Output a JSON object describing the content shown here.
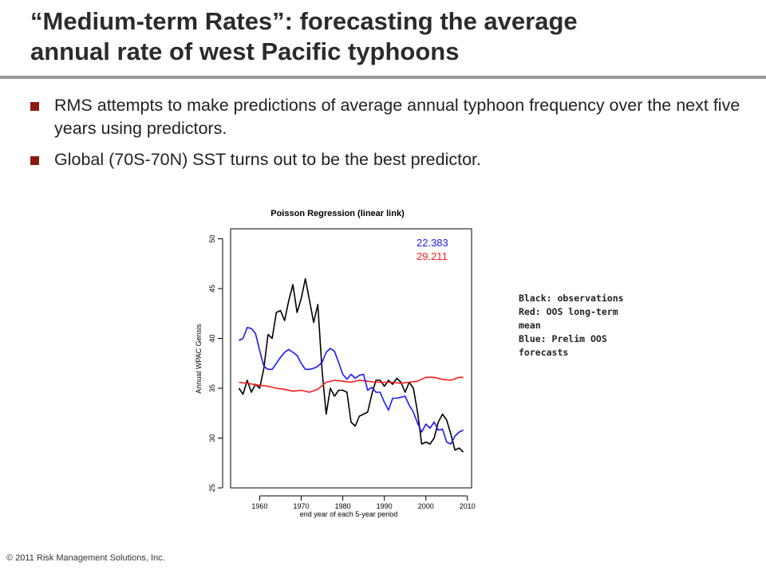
{
  "slide": {
    "title_line1": "“Medium-term Rates”: forecasting the average",
    "title_line2": "annual rate of west Pacific typhoons",
    "bullets": [
      "RMS attempts to make predictions of average annual typhoon frequency over the next five years using predictors.",
      "Global (70S-70N) SST turns out to be the best predictor."
    ],
    "legend_note": [
      "Black: observations",
      "Red: OOS long-term mean",
      "Blue: Prelim OOS forecasts"
    ],
    "footer": "© 2011 Risk Management Solutions, Inc."
  },
  "chart_data": {
    "type": "line",
    "title": "Poisson Regression (linear link)",
    "xlabel": "end year of each 5-year period",
    "ylabel": "Annual WPAC Gensis",
    "xlim": [
      1953,
      2011
    ],
    "ylim": [
      25,
      51
    ],
    "xticks": [
      1960,
      1970,
      1980,
      1990,
      2000,
      2010
    ],
    "yticks": [
      25,
      30,
      35,
      40,
      45,
      50
    ],
    "annotations": [
      {
        "text": "22.383",
        "color": "#1a1aff"
      },
      {
        "text": "29.211",
        "color": "#ff1a1a"
      }
    ],
    "series": [
      {
        "color": "#000000",
        "x": [
          1955,
          1956,
          1957,
          1958,
          1959,
          1960,
          1961,
          1962,
          1963,
          1964,
          1965,
          1966,
          1967,
          1968,
          1969,
          1970,
          1971,
          1972,
          1973,
          1974,
          1975,
          1976,
          1977,
          1978,
          1979,
          1980,
          1981,
          1982,
          1983,
          1984,
          1985,
          1986,
          1987,
          1988,
          1989,
          1990,
          1991,
          1992,
          1993,
          1994,
          1995,
          1996,
          1997,
          1998,
          1999,
          2000,
          2001,
          2002,
          2003,
          2004,
          2005,
          2006,
          2007,
          2008,
          2009
        ],
        "values": [
          35.0,
          34.4,
          35.8,
          34.6,
          35.4,
          35.0,
          37.0,
          40.4,
          40.0,
          42.6,
          42.8,
          41.8,
          43.8,
          45.4,
          42.6,
          44.0,
          46.0,
          43.8,
          41.6,
          43.4,
          36.8,
          32.4,
          35.0,
          34.2,
          34.8,
          34.8,
          34.6,
          31.6,
          31.2,
          32.2,
          32.4,
          32.6,
          34.4,
          35.8,
          35.8,
          35.2,
          35.8,
          35.4,
          36.0,
          35.6,
          34.6,
          35.6,
          35.0,
          32.6,
          29.4,
          29.6,
          29.4,
          30.0,
          31.6,
          32.4,
          31.8,
          30.4,
          28.8,
          29.0,
          28.6
        ]
      },
      {
        "color": "#ff1a1a",
        "x": [
          1955,
          1957,
          1960,
          1962,
          1964,
          1966,
          1968,
          1970,
          1972,
          1974,
          1976,
          1978,
          1980,
          1982,
          1984,
          1986,
          1988,
          1990,
          1992,
          1994,
          1996,
          1998,
          2000,
          2002,
          2004,
          2006,
          2008,
          2009
        ],
        "values": [
          35.6,
          35.5,
          35.3,
          35.2,
          35.0,
          34.9,
          34.7,
          34.8,
          34.6,
          34.9,
          35.6,
          35.8,
          35.7,
          35.6,
          35.8,
          35.7,
          35.6,
          35.6,
          35.6,
          35.5,
          35.6,
          35.7,
          36.1,
          36.1,
          35.9,
          35.8,
          36.1,
          36.1
        ]
      },
      {
        "color": "#1a1aff",
        "x": [
          1955,
          1956,
          1957,
          1958,
          1959,
          1960,
          1961,
          1962,
          1963,
          1964,
          1965,
          1966,
          1967,
          1968,
          1969,
          1970,
          1971,
          1972,
          1973,
          1974,
          1975,
          1976,
          1977,
          1978,
          1979,
          1980,
          1981,
          1982,
          1983,
          1984,
          1985,
          1986,
          1987,
          1988,
          1989,
          1990,
          1991,
          1992,
          1993,
          1994,
          1995,
          1996,
          1997,
          1998,
          1999,
          2000,
          2001,
          2002,
          2003,
          2004,
          2005,
          2006,
          2007,
          2008,
          2009
        ],
        "values": [
          39.8,
          40.0,
          41.1,
          41.0,
          40.5,
          38.8,
          37.2,
          36.9,
          36.9,
          37.5,
          38.1,
          38.6,
          38.9,
          38.6,
          38.3,
          37.5,
          36.9,
          36.9,
          37.0,
          37.2,
          37.6,
          38.6,
          39.0,
          38.7,
          37.6,
          36.4,
          35.9,
          36.4,
          36.0,
          36.3,
          36.4,
          34.8,
          35.1,
          34.6,
          34.6,
          33.6,
          32.8,
          34.0,
          34.0,
          34.1,
          34.2,
          33.3,
          32.6,
          31.5,
          30.6,
          31.4,
          31.0,
          31.6,
          30.8,
          30.9,
          29.6,
          29.4,
          30.2,
          30.6,
          30.8
        ]
      }
    ]
  }
}
